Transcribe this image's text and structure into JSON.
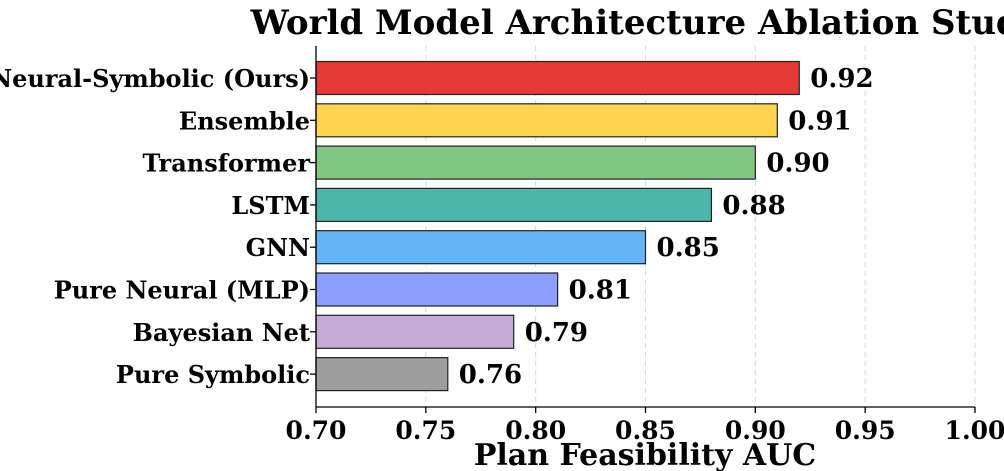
{
  "chart_data": {
    "type": "bar",
    "orientation": "horizontal",
    "title": "World Model Architecture Ablation Study",
    "xlabel": "Plan Feasibility AUC",
    "ylabel": "",
    "xlim": [
      0.7,
      1.0
    ],
    "xticks": [
      "0.70",
      "0.75",
      "0.80",
      "0.85",
      "0.90",
      "0.95",
      "1.00"
    ],
    "grid": true,
    "categories": [
      "Neural-Symbolic (Ours)",
      "Ensemble",
      "Transformer",
      "LSTM",
      "GNN",
      "Pure Neural (MLP)",
      "Bayesian Net",
      "Pure Symbolic"
    ],
    "values": [
      0.92,
      0.91,
      0.9,
      0.88,
      0.85,
      0.81,
      0.79,
      0.76
    ],
    "value_labels": [
      "0.92",
      "0.91",
      "0.90",
      "0.88",
      "0.85",
      "0.81",
      "0.79",
      "0.76"
    ],
    "colors": [
      "#e53935",
      "#ffd54f",
      "#81c784",
      "#4db6ac",
      "#64b5f6",
      "#8c9eff",
      "#c5acd6",
      "#9e9e9e"
    ]
  }
}
